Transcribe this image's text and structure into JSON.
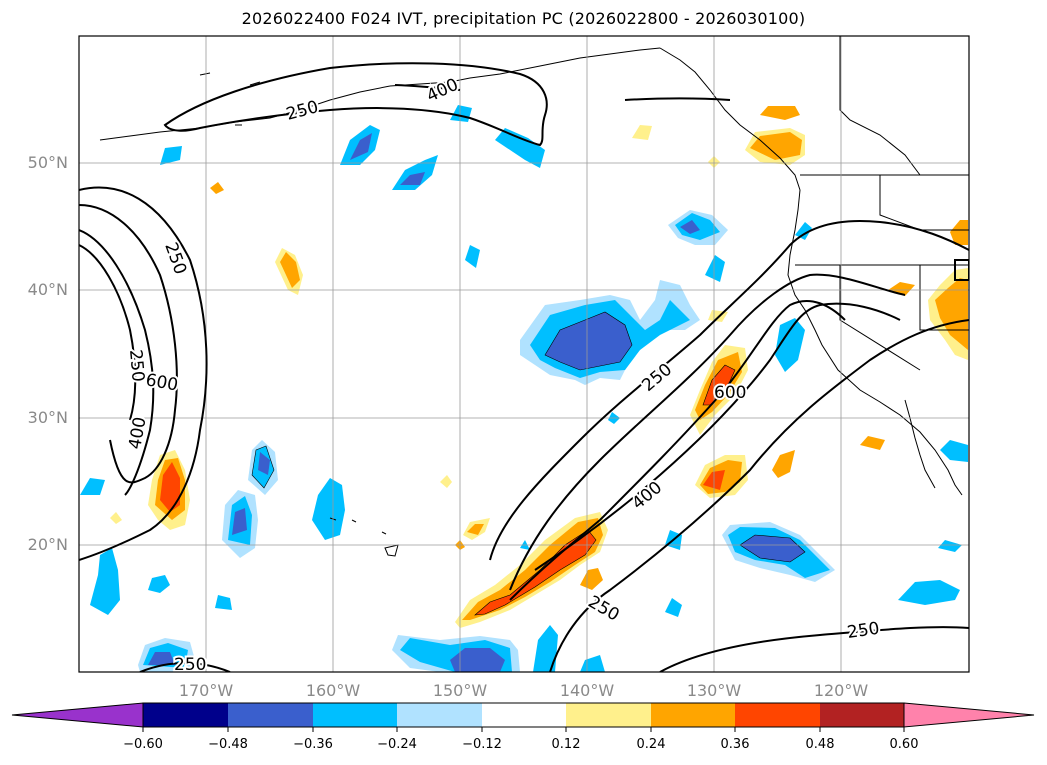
{
  "title": "2026022400 F024 IVT, precipitation PC (2026022800 - 2026030100)",
  "map": {
    "lat_labels": [
      "50°N",
      "40°N",
      "30°N",
      "20°N"
    ],
    "lon_labels": [
      "170°W",
      "160°W",
      "150°W",
      "140°W",
      "130°W",
      "120°W"
    ],
    "ivt_contour_labels": [
      "250",
      "400",
      "250",
      "250",
      "600",
      "400",
      "250",
      "250",
      "600",
      "400",
      "250",
      "250"
    ]
  },
  "colorbar": {
    "tick_labels": [
      "−0.60",
      "−0.48",
      "−0.36",
      "−0.24",
      "−0.12",
      "0.12",
      "0.24",
      "0.36",
      "0.48",
      "0.60"
    ],
    "colors": [
      "#9932cc",
      "#00008b",
      "#3a5fcd",
      "#00bfff",
      "#b0e2ff",
      "#ffffff",
      "#fff08c",
      "#ffa500",
      "#ff4500",
      "#b22222",
      "#ff82ab"
    ]
  },
  "chart_data": {
    "type": "heatmap",
    "title": "2026022400 F024 IVT, precipitation PC (2026022800 - 2026030100)",
    "extent_lon": [
      -180,
      -110
    ],
    "extent_lat": [
      10,
      60
    ],
    "variables": [
      "IVT contours",
      "precipitation PC (filled)"
    ],
    "contour_levels": [
      250,
      400,
      600
    ],
    "colorbar_levels": [
      -0.6,
      -0.48,
      -0.36,
      -0.24,
      -0.12,
      0.12,
      0.24,
      0.36,
      0.48,
      0.6
    ]
  }
}
